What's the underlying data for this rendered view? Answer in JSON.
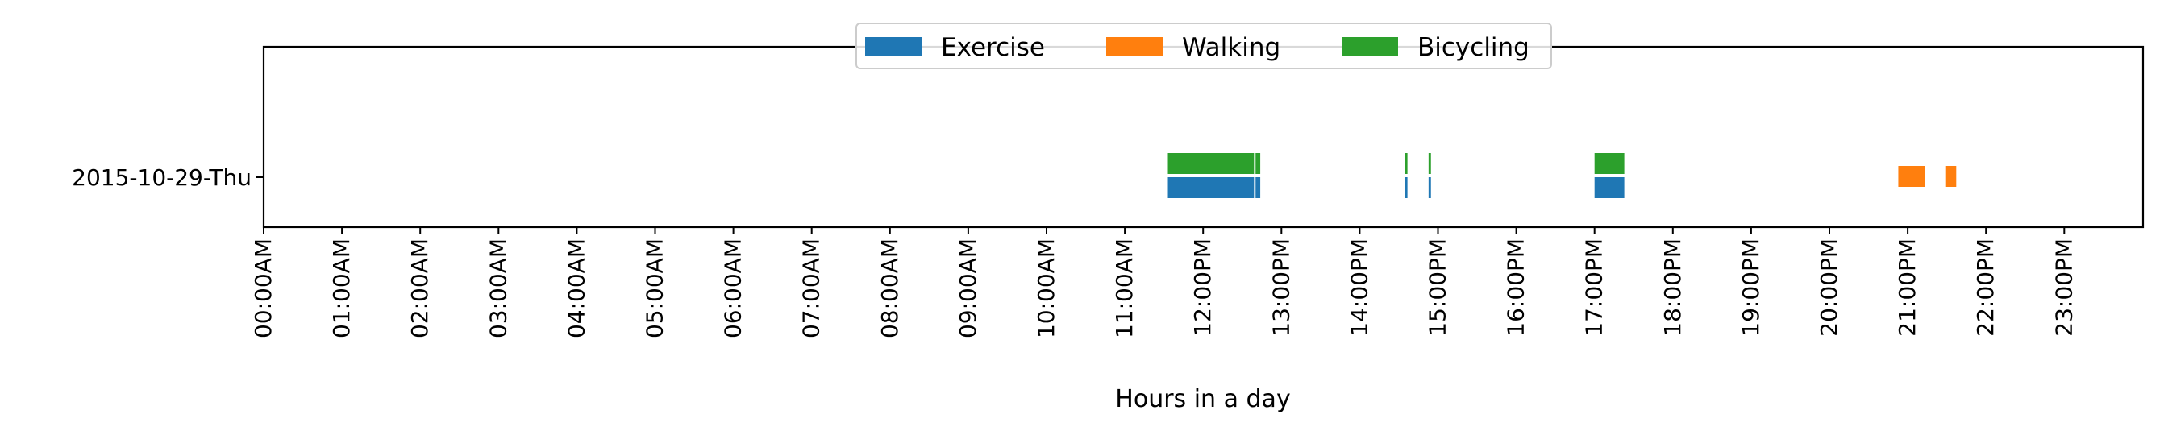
{
  "chart_data": {
    "type": "bar",
    "xlabel": "Hours in a day",
    "ylabel": "",
    "xlim": [
      0,
      24
    ],
    "x_ticks": [
      "00:00AM",
      "01:00AM",
      "02:00AM",
      "03:00AM",
      "04:00AM",
      "05:00AM",
      "06:00AM",
      "07:00AM",
      "08:00AM",
      "09:00AM",
      "10:00AM",
      "11:00AM",
      "12:00PM",
      "13:00PM",
      "14:00PM",
      "15:00PM",
      "16:00PM",
      "17:00PM",
      "18:00PM",
      "19:00PM",
      "20:00PM",
      "21:00PM",
      "22:00PM",
      "23:00PM"
    ],
    "y_categories": [
      "2015-10-29-Thu"
    ],
    "legend_position": "upper-center",
    "grid": false,
    "series": [
      {
        "name": "Exercise",
        "color": "#1f77b4",
        "intervals": [
          {
            "day": "2015-10-29-Thu",
            "start": 11.55,
            "end": 12.65
          },
          {
            "day": "2015-10-29-Thu",
            "start": 12.67,
            "end": 12.73
          },
          {
            "day": "2015-10-29-Thu",
            "start": 14.58,
            "end": 14.61
          },
          {
            "day": "2015-10-29-Thu",
            "start": 14.88,
            "end": 14.91
          },
          {
            "day": "2015-10-29-Thu",
            "start": 17.0,
            "end": 17.38
          }
        ]
      },
      {
        "name": "Walking",
        "color": "#ff7f0e",
        "intervals": [
          {
            "day": "2015-10-29-Thu",
            "start": 20.88,
            "end": 21.22
          },
          {
            "day": "2015-10-29-Thu",
            "start": 21.48,
            "end": 21.62
          }
        ]
      },
      {
        "name": "Bicycling",
        "color": "#2ca02c",
        "intervals": [
          {
            "day": "2015-10-29-Thu",
            "start": 11.55,
            "end": 12.65
          },
          {
            "day": "2015-10-29-Thu",
            "start": 12.67,
            "end": 12.73
          },
          {
            "day": "2015-10-29-Thu",
            "start": 14.58,
            "end": 14.61
          },
          {
            "day": "2015-10-29-Thu",
            "start": 14.88,
            "end": 14.91
          },
          {
            "day": "2015-10-29-Thu",
            "start": 17.0,
            "end": 17.38
          }
        ]
      }
    ]
  }
}
